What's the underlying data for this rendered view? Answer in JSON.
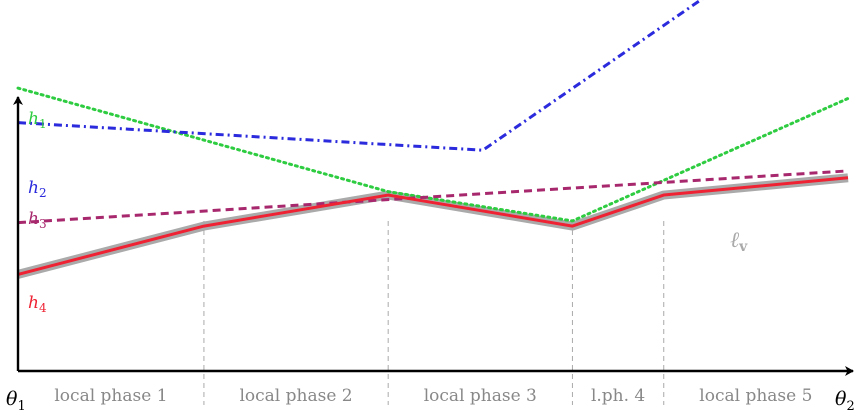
{
  "axes": {
    "x_start_label": "θ",
    "x_start_sub": "1",
    "x_end_label": "θ",
    "x_end_sub": "2",
    "x_end_value": 1.0
  },
  "phases": [
    {
      "label": "local phase 1",
      "end": 0.224
    },
    {
      "label": "local phase 2",
      "end": 0.446
    },
    {
      "label": "local phase 3",
      "end": 0.668
    },
    {
      "label": "l.ph. 4",
      "end": 0.778
    },
    {
      "label": "local phase 5",
      "end": 1.0
    }
  ],
  "curves": [
    {
      "key": "h1",
      "label_main": "h",
      "label_sub": "1",
      "color": "#2ecc40",
      "style": "dotted",
      "points": [
        [
          0.0,
          0.82
        ],
        [
          0.446,
          0.52
        ],
        [
          0.668,
          0.435
        ],
        [
          1.0,
          0.79
        ]
      ]
    },
    {
      "key": "h2",
      "label_main": "h",
      "label_sub": "2",
      "color": "#2b2bdd",
      "style": "dashdot",
      "points": [
        [
          0.0,
          0.72
        ],
        [
          0.56,
          0.64
        ],
        [
          1.0,
          1.37
        ]
      ]
    },
    {
      "key": "h3",
      "label_main": "h",
      "label_sub": "3",
      "color": "#a8286e",
      "style": "dashed",
      "points": [
        [
          0.0,
          0.43
        ],
        [
          1.0,
          0.58
        ]
      ]
    },
    {
      "key": "h4",
      "label_main": "h",
      "label_sub": "4",
      "color": "#ee2233",
      "style": "solid",
      "points": [
        [
          0.0,
          0.28
        ],
        [
          0.224,
          0.42
        ],
        [
          0.446,
          0.51
        ],
        [
          0.668,
          0.42
        ],
        [
          0.778,
          0.51
        ],
        [
          1.0,
          0.56
        ]
      ]
    }
  ],
  "envelope": {
    "label_main": "ℓ",
    "label_sub": "v",
    "color": "#aaaaaa"
  }
}
